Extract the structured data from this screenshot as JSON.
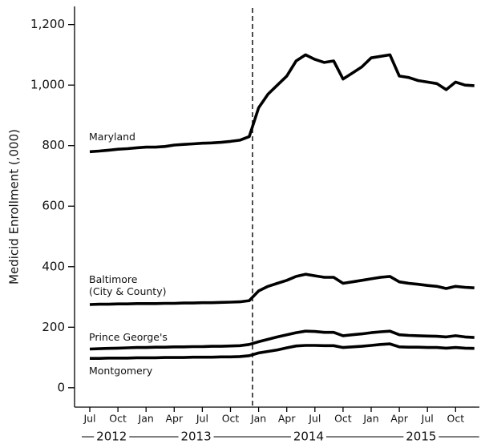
{
  "chart_data": {
    "type": "line",
    "y_label": "Medicid Enrollment (,000)",
    "categories": [
      "Jul",
      null,
      null,
      "Oct",
      null,
      null,
      "Jan",
      null,
      null,
      "Apr",
      null,
      null,
      "Jul",
      null,
      null,
      "Oct",
      null,
      null,
      "Jan",
      null,
      null,
      "Apr",
      null,
      null,
      "Jul",
      null,
      null,
      "Oct",
      null,
      null,
      "Jan",
      null,
      null,
      "Apr",
      null,
      null,
      "Jul",
      null,
      null,
      "Oct",
      null,
      null
    ],
    "years": [
      "2012",
      "2013",
      "2014",
      "2015"
    ],
    "ylim": [
      -64,
      1260
    ],
    "yticks": [
      0,
      200,
      400,
      600,
      800,
      {
        "value": 1000,
        "label": "1,000"
      },
      {
        "value": 1200,
        "label": "1,200"
      }
    ],
    "series": [
      {
        "name": "Maryland",
        "color": "#000000",
        "values": [
          780,
          782,
          785,
          788,
          790,
          793,
          795,
          795,
          797,
          802,
          804,
          806,
          808,
          809,
          811,
          814,
          818,
          830,
          925,
          970,
          1000,
          1030,
          1080,
          1100,
          1085,
          1075,
          1080,
          1020,
          1040,
          1060,
          1090,
          1095,
          1100,
          1030,
          1025,
          1015,
          1010,
          1005,
          985,
          1010,
          1000,
          998
        ]
      },
      {
        "name": "Baltimore\n(City & County)",
        "color": "#000000",
        "values": [
          275,
          276,
          276,
          277,
          277,
          278,
          278,
          278,
          279,
          279,
          280,
          280,
          281,
          281,
          282,
          283,
          284,
          288,
          320,
          335,
          345,
          355,
          368,
          375,
          370,
          365,
          365,
          345,
          350,
          355,
          360,
          365,
          368,
          350,
          345,
          342,
          338,
          335,
          328,
          335,
          332,
          330
        ]
      },
      {
        "name": "Prince George's",
        "color": "#000000",
        "values": [
          128,
          129,
          130,
          131,
          132,
          133,
          133,
          134,
          134,
          135,
          135,
          136,
          136,
          137,
          137,
          138,
          139,
          143,
          152,
          160,
          168,
          175,
          182,
          187,
          186,
          183,
          183,
          172,
          175,
          178,
          182,
          185,
          187,
          175,
          173,
          172,
          171,
          170,
          168,
          172,
          168,
          166
        ]
      },
      {
        "name": "Montgomery",
        "color": "#000000",
        "values": [
          97,
          97,
          98,
          98,
          98,
          99,
          99,
          99,
          100,
          100,
          100,
          101,
          101,
          101,
          102,
          102,
          103,
          106,
          115,
          120,
          125,
          132,
          138,
          140,
          140,
          139,
          139,
          133,
          135,
          137,
          140,
          143,
          145,
          135,
          134,
          134,
          133,
          133,
          131,
          133,
          131,
          130
        ]
      }
    ]
  }
}
